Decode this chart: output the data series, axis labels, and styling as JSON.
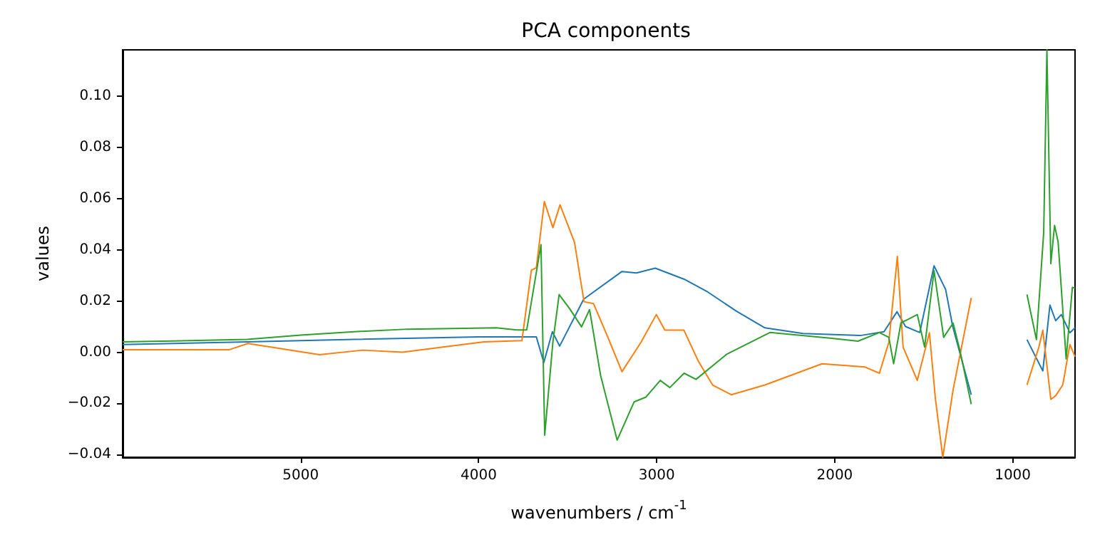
{
  "chart_data": {
    "type": "line",
    "title": "PCA components",
    "xlabel": "wavenumbers / cm$^{-1}$",
    "ylabel": "values",
    "xlim": [
      6000,
      650
    ],
    "ylim": [
      -0.041,
      0.118
    ],
    "xticks": [
      5000,
      4000,
      3000,
      2000,
      1000
    ],
    "yticks": [
      {
        "value": -0.04,
        "label": "−0.04"
      },
      {
        "value": -0.02,
        "label": "−0.02"
      },
      {
        "value": 0,
        "label": "0.00"
      },
      {
        "value": 0.02,
        "label": "0.02"
      },
      {
        "value": 0.04,
        "label": "0.04"
      },
      {
        "value": 0.06,
        "label": "0.06"
      },
      {
        "value": 0.08,
        "label": "0.08"
      },
      {
        "value": 0.1,
        "label": "0.10"
      }
    ],
    "grid": false,
    "marker": "none",
    "line_style": "solid",
    "series": [
      {
        "color": "#1f77b4",
        "x": [
          6000,
          5300,
          4700,
          4000,
          3700,
          3676,
          3634,
          3586,
          3545,
          3410,
          3195,
          3114,
          3008,
          2846,
          2713,
          2552,
          2392,
          2178,
          1857,
          1723,
          1650,
          1602,
          1522,
          1442,
          1377,
          1337,
          1233,
          1100,
          920,
          831,
          791,
          759,
          727,
          679,
          650
        ],
        "values": [
          0.003,
          0.004,
          0.005,
          0.006,
          0.006,
          0.006,
          -0.004,
          0.008,
          0.0024,
          0.0207,
          0.0315,
          0.0309,
          0.0328,
          0.0285,
          0.0235,
          0.016,
          0.0095,
          0.0073,
          0.0065,
          0.008,
          0.0158,
          0.01,
          0.0077,
          0.0337,
          0.0245,
          0.01,
          -0.0166,
          null,
          0.0049,
          -0.0073,
          0.0184,
          0.0123,
          0.0147,
          0.0076,
          0.0095
        ]
      },
      {
        "color": "#ff7f0e",
        "x": [
          6000,
          5400,
          5296,
          4894,
          4653,
          4428,
          3971,
          3757,
          3704,
          3676,
          3631,
          3583,
          3543,
          3462,
          3408,
          3355,
          3274,
          3195,
          3088,
          3002,
          2954,
          2847,
          2766,
          2686,
          2581,
          2392,
          2071,
          1830,
          1749,
          1696,
          1648,
          1616,
          1536,
          1468,
          1434,
          1393,
          1335,
          1233,
          1100,
          920,
          853,
          831,
          786,
          759,
          719,
          679,
          650
        ],
        "values": [
          0.001,
          0.001,
          0.0034,
          -0.001,
          0.0008,
          0,
          0.004,
          0.0045,
          0.032,
          0.033,
          0.0588,
          0.0486,
          0.0575,
          0.043,
          0.0197,
          0.019,
          0.0058,
          -0.0076,
          0.0039,
          0.0147,
          0.0086,
          0.0086,
          -0.0035,
          -0.0128,
          -0.0166,
          -0.0128,
          -0.0045,
          -0.0058,
          -0.0082,
          0.0039,
          0.0374,
          0.002,
          -0.011,
          0.0076,
          -0.0184,
          -0.041,
          -0.0147,
          0.0212,
          null,
          -0.0128,
          0.002,
          0.0086,
          -0.0184,
          -0.017,
          -0.0128,
          0.003,
          -0.0017
        ]
      },
      {
        "color": "#2ca02c",
        "x": [
          6000,
          5300,
          5000,
          4700,
          4400,
          3900,
          3786,
          3730,
          3650,
          3629,
          3583,
          3548,
          3489,
          3422,
          3377,
          3315,
          3222,
          3127,
          3060,
          2980,
          2926,
          2846,
          2779,
          2605,
          2364,
          2016,
          1869,
          1749,
          1696,
          1669,
          1628,
          1536,
          1495,
          1442,
          1388,
          1335,
          1295,
          1233,
          1100,
          920,
          867,
          826,
          808,
          786,
          765,
          745,
          700,
          665,
          650
        ],
        "values": [
          0.004,
          0.005,
          0.0067,
          0.008,
          0.009,
          0.0095,
          0.0087,
          0.0087,
          0.042,
          -0.0324,
          0.004,
          0.0225,
          0.017,
          0.0099,
          0.0166,
          -0.0091,
          -0.0343,
          -0.0194,
          -0.0175,
          -0.011,
          -0.0138,
          -0.0082,
          -0.0106,
          -0.0007,
          0.0077,
          0.0054,
          0.0043,
          0.0077,
          0.0058,
          -0.0045,
          0.0114,
          0.0147,
          0.002,
          0.0318,
          0.0058,
          0.0114,
          0.0002,
          -0.0203,
          null,
          0.0225,
          0.0049,
          0.0468,
          0.118,
          0.0346,
          0.0495,
          0.043,
          -0.0026,
          0.0253,
          0.025
        ]
      }
    ]
  }
}
